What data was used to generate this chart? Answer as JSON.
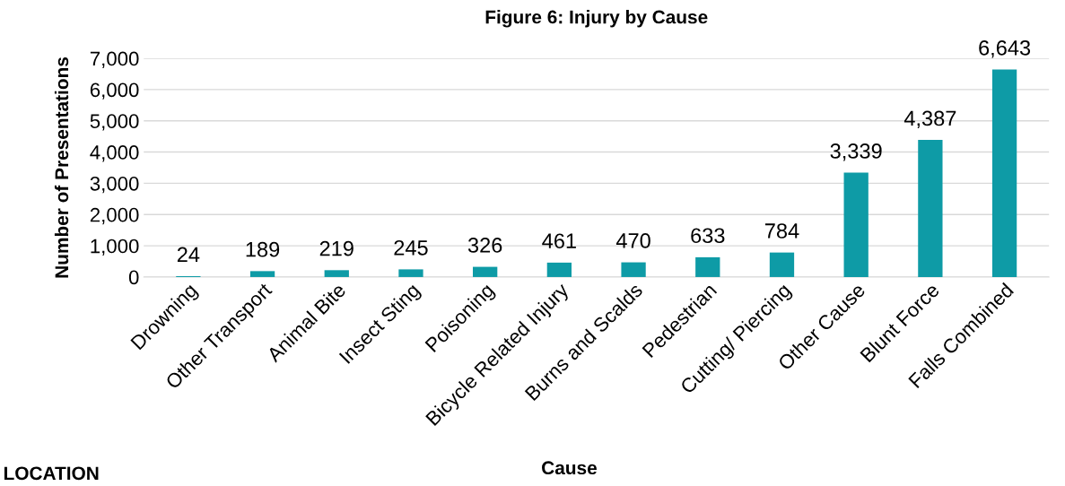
{
  "chart_data": {
    "type": "bar",
    "title": "Figure 6: Injury by Cause",
    "xlabel": "Cause",
    "ylabel": "Number of Presentations",
    "categories": [
      "Drowning",
      "Other Transport",
      "Animal Bite",
      "Insect Sting",
      "Poisoning",
      "Bicycle Related Injury",
      "Burns and Scalds",
      "Pedestrian",
      "Cutting/ Piercing",
      "Other Cause",
      "Blunt Force",
      "Falls Combined"
    ],
    "values": [
      24,
      189,
      219,
      245,
      326,
      461,
      470,
      633,
      784,
      3339,
      4387,
      6643
    ],
    "color": "#0e9ba6",
    "ylim": [
      0,
      7000
    ],
    "yticks": [
      {
        "value": 0,
        "label": "0"
      },
      {
        "value": 1000,
        "label": "1,000"
      },
      {
        "value": 2000,
        "label": "2,000"
      },
      {
        "value": 3000,
        "label": "3,000"
      },
      {
        "value": 4000,
        "label": "4,000"
      },
      {
        "value": 5000,
        "label": "5,000"
      },
      {
        "value": 6000,
        "label": "6,000"
      },
      {
        "value": 7000,
        "label": "7,000"
      }
    ],
    "value_labels": [
      "24",
      "189",
      "219",
      "245",
      "326",
      "461",
      "470",
      "633",
      "784",
      "3,339",
      "4,387",
      "6,643"
    ],
    "grid": "y",
    "legend": false,
    "annotations": [
      "LOCATION"
    ]
  }
}
